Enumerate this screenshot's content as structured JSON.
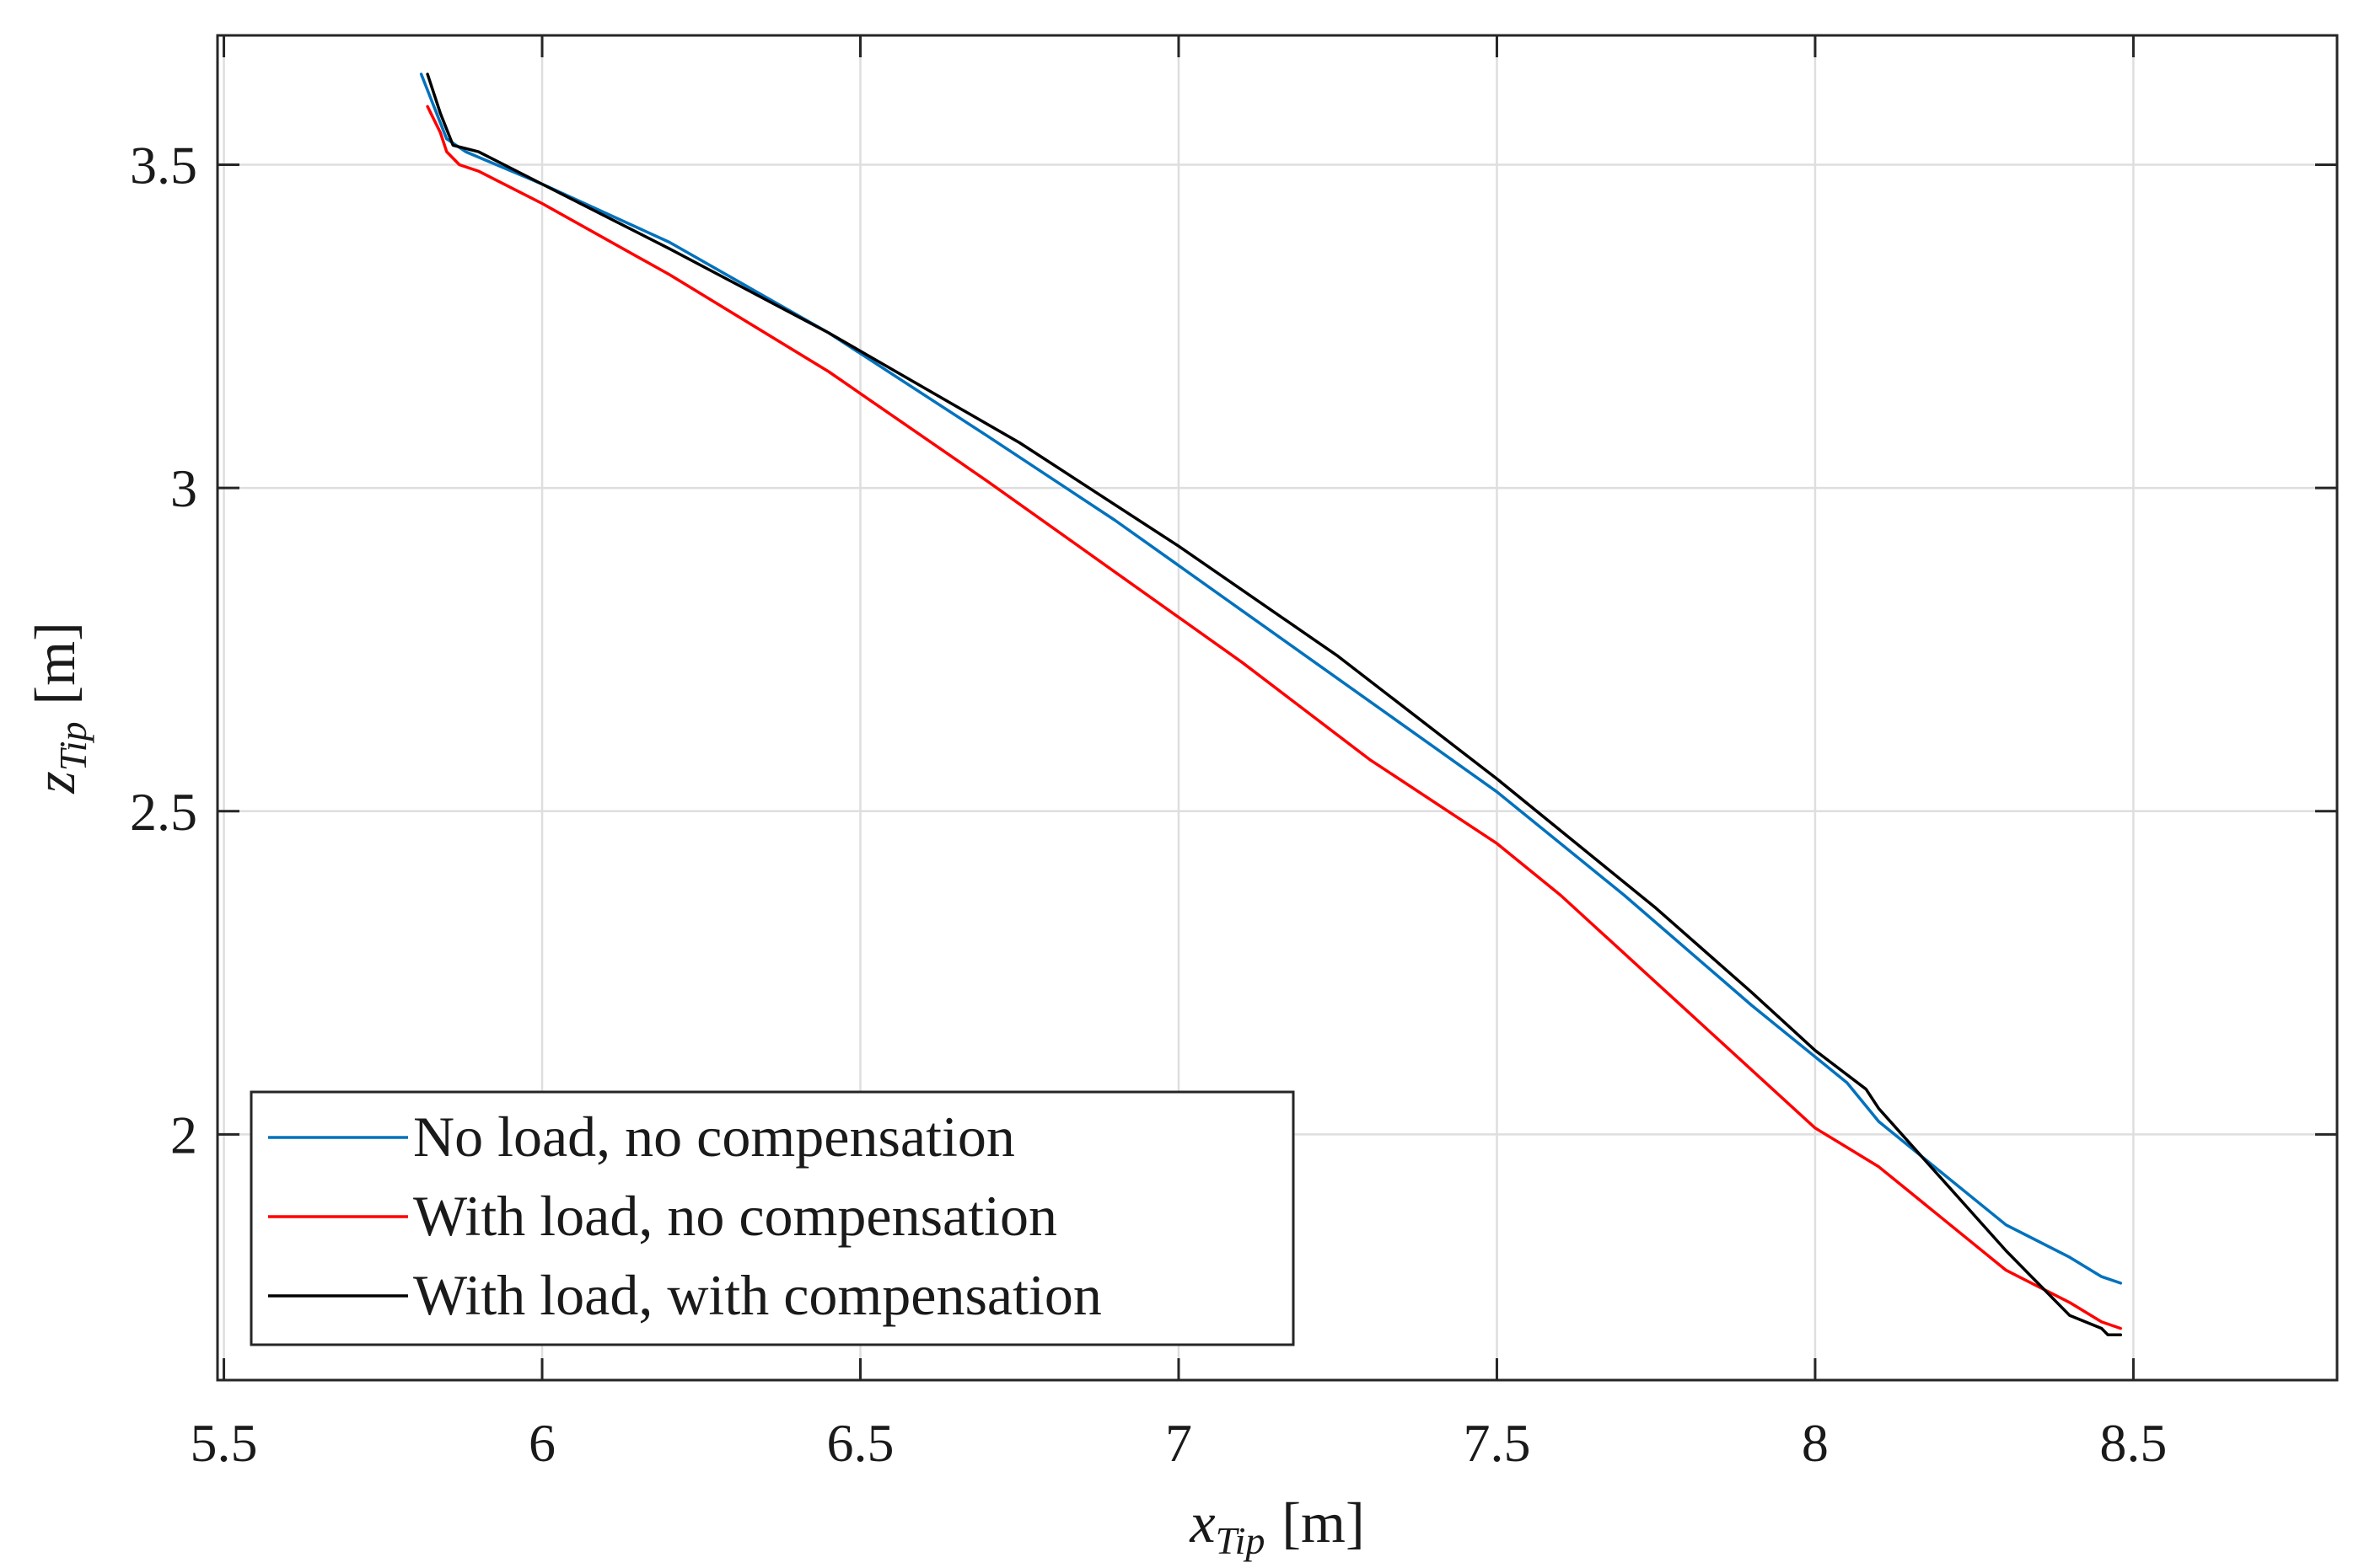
{
  "chart_data": {
    "type": "line",
    "title": "",
    "xlabel": {
      "symbol": "x",
      "subscript": "Tip",
      "unit": "[m]"
    },
    "ylabel": {
      "symbol": "z",
      "subscript": "Tip",
      "unit": "[m]"
    },
    "xlim": [
      5.49,
      8.82
    ],
    "ylim": [
      1.62,
      3.7
    ],
    "xticks": [
      5.5,
      6,
      6.5,
      7,
      7.5,
      8,
      8.5
    ],
    "xtick_labels": [
      "5.5",
      "6",
      "6.5",
      "7",
      "7.5",
      "8",
      "8.5"
    ],
    "yticks": [
      2,
      2.5,
      3,
      3.5
    ],
    "ytick_labels": [
      "2",
      "2.5",
      "3",
      "3.5"
    ],
    "grid": true,
    "legend_position": "bottom-left",
    "series": [
      {
        "name": "No load, no compensation",
        "color": "#0072BD",
        "x": [
          5.81,
          5.83,
          5.85,
          5.88,
          6.0,
          6.2,
          6.45,
          6.7,
          6.9,
          7.1,
          7.3,
          7.5,
          7.7,
          7.9,
          8.0,
          8.05,
          8.1,
          8.2,
          8.3,
          8.4,
          8.45,
          8.48
        ],
        "y": [
          3.64,
          3.59,
          3.54,
          3.52,
          3.47,
          3.38,
          3.24,
          3.08,
          2.95,
          2.81,
          2.67,
          2.53,
          2.37,
          2.2,
          2.12,
          2.08,
          2.02,
          1.94,
          1.86,
          1.81,
          1.78,
          1.77
        ]
      },
      {
        "name": "With load, no compensation",
        "color": "#FF0000",
        "x": [
          5.82,
          5.84,
          5.85,
          5.87,
          5.9,
          6.0,
          6.2,
          6.45,
          6.7,
          6.9,
          7.1,
          7.3,
          7.5,
          7.6,
          7.7,
          7.8,
          7.9,
          8.0,
          8.05,
          8.1,
          8.15,
          8.2,
          8.3,
          8.4,
          8.45,
          8.48
        ],
        "y": [
          3.59,
          3.55,
          3.52,
          3.5,
          3.49,
          3.44,
          3.33,
          3.18,
          3.01,
          2.87,
          2.73,
          2.58,
          2.45,
          2.37,
          2.28,
          2.19,
          2.1,
          2.01,
          1.98,
          1.95,
          1.91,
          1.87,
          1.79,
          1.74,
          1.71,
          1.7
        ]
      },
      {
        "name": "With load, with compensation",
        "color": "#000000",
        "x": [
          5.82,
          5.84,
          5.86,
          5.9,
          6.0,
          6.2,
          6.45,
          6.75,
          7.0,
          7.25,
          7.5,
          7.75,
          7.9,
          8.0,
          8.08,
          8.1,
          8.2,
          8.3,
          8.4,
          8.45,
          8.46,
          8.48
        ],
        "y": [
          3.64,
          3.58,
          3.53,
          3.52,
          3.47,
          3.37,
          3.24,
          3.07,
          2.91,
          2.74,
          2.55,
          2.35,
          2.22,
          2.13,
          2.07,
          2.04,
          1.93,
          1.82,
          1.72,
          1.7,
          1.69,
          1.69
        ]
      }
    ]
  }
}
